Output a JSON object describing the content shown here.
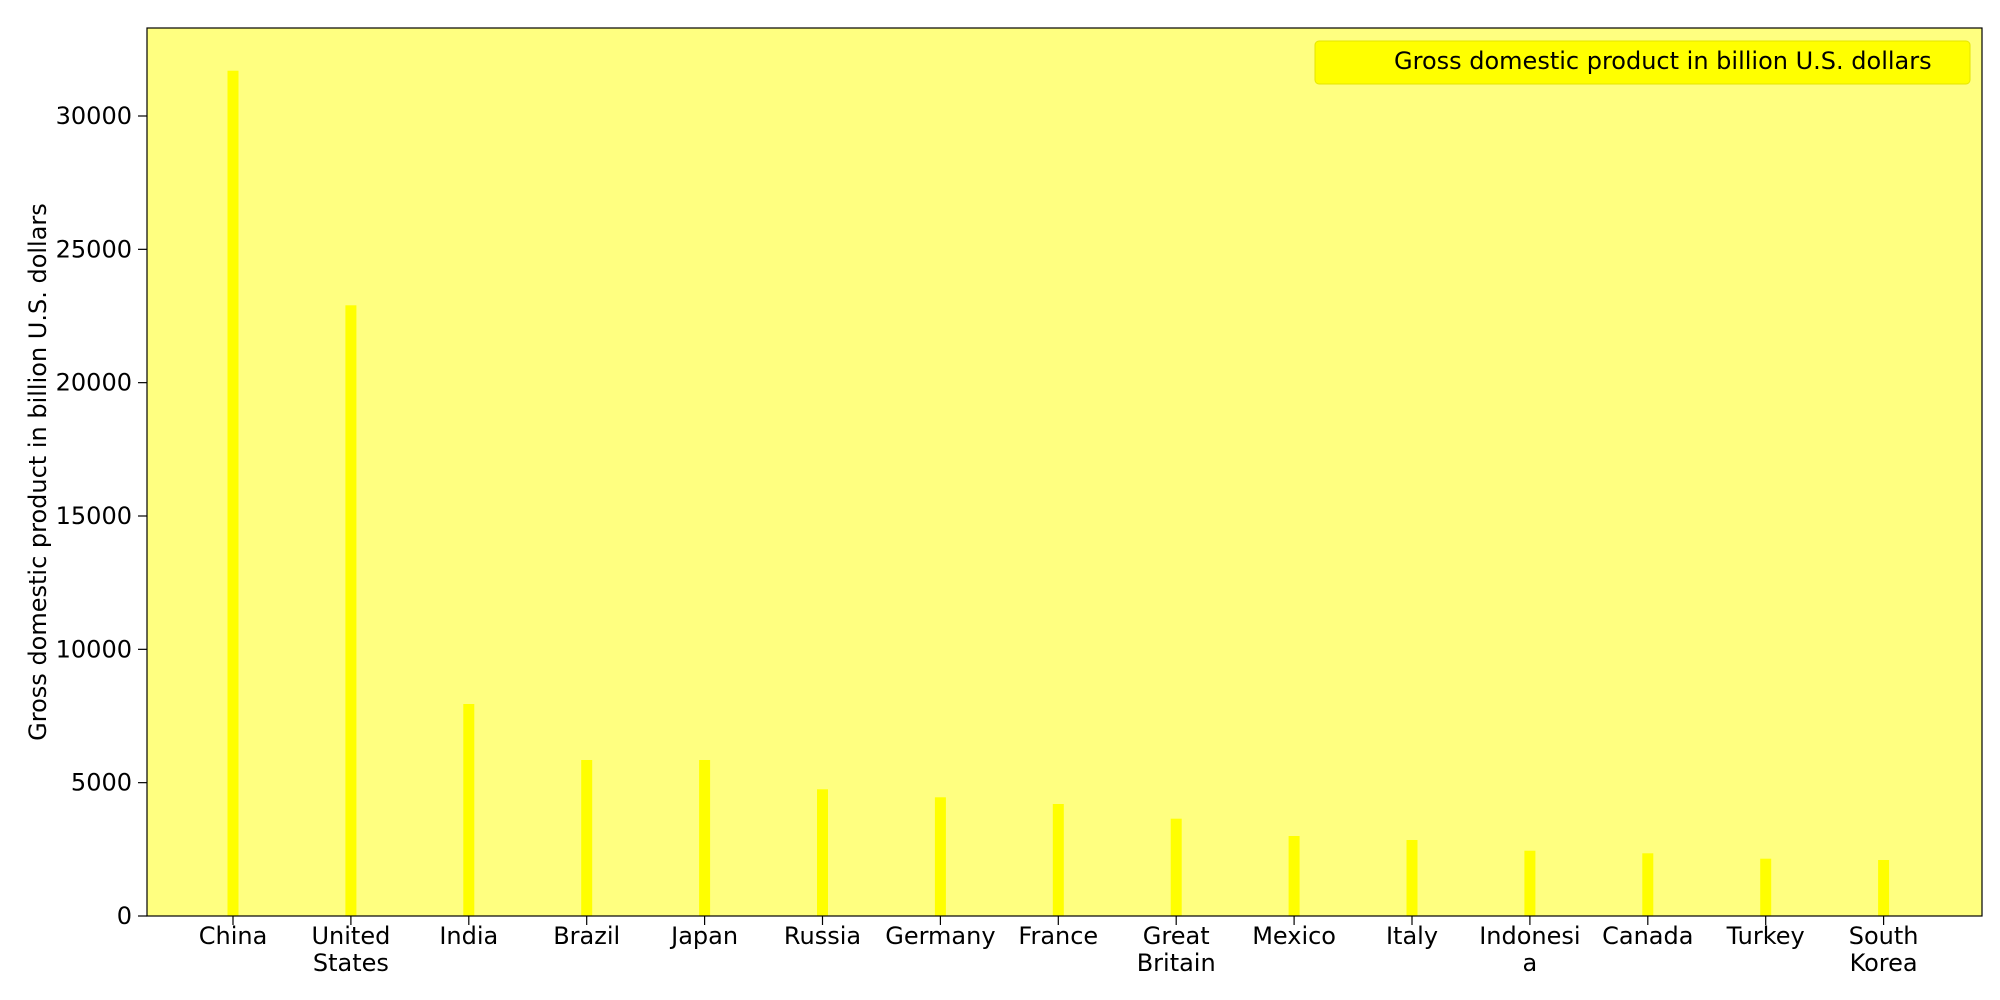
{
  "chart_data": {
    "type": "bar",
    "categories": [
      [
        "China"
      ],
      [
        "United",
        "States"
      ],
      [
        "India"
      ],
      [
        "Brazil"
      ],
      [
        "Japan"
      ],
      [
        "Russia"
      ],
      [
        "Germany"
      ],
      [
        "France"
      ],
      [
        "Great",
        "Britain"
      ],
      [
        "Mexico"
      ],
      [
        "Italy"
      ],
      [
        "Indonesi",
        "a"
      ],
      [
        "Canada"
      ],
      [
        "Turkey"
      ],
      [
        "South",
        "Korea"
      ]
    ],
    "series": [
      {
        "name": "Gross domestic product in billion U.S. dollars",
        "values": [
          31700,
          22900,
          7950,
          5850,
          5850,
          4750,
          4450,
          4200,
          3650,
          3000,
          2850,
          2450,
          2350,
          2150,
          2100
        ]
      }
    ],
    "xlabel": "",
    "ylabel": "Gross domestic product in billion U.S. dollars",
    "ylim": [
      0,
      33300
    ],
    "yticks": [
      0,
      5000,
      10000,
      15000,
      20000,
      25000,
      30000
    ],
    "legend_position": "top-right",
    "grid": false,
    "colors": {
      "bar": "#ffff00",
      "plot_background": "#ffff80",
      "legend_background": "#ffff00",
      "axis": "#000000"
    }
  }
}
